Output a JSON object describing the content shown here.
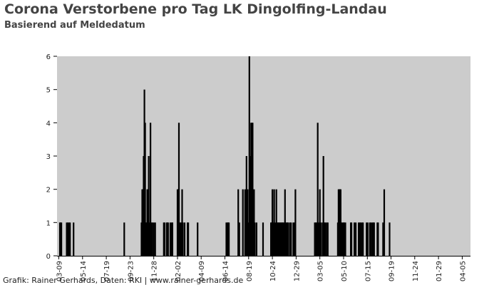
{
  "title": "Corona Verstorbene pro Tag LK Dingolfing-Landau",
  "subtitle": "Basierend auf Meldedatum",
  "credit": "Grafik: Rainer Gerhards, Daten: RKI | www.rainer-gerhards.de",
  "colors": {
    "plot_bg": "#cccccc",
    "bar": "#000000",
    "text": "#444444"
  },
  "chart_data": {
    "type": "bar",
    "title": "Corona Verstorbene pro Tag LK Dingolfing-Landau",
    "subtitle": "Basierend auf Meldedatum",
    "xlabel": "",
    "ylabel": "",
    "ylim": [
      0,
      6
    ],
    "y_ticks": [
      0,
      1,
      2,
      3,
      4,
      5,
      6
    ],
    "x_tick_labels": [
      "03-09",
      "05-14",
      "07-19",
      "09-23",
      "11-28",
      "02-02",
      "04-09",
      "06-14",
      "08-19",
      "10-24",
      "12-29",
      "03-05",
      "05-10",
      "07-15",
      "09-19",
      "11-24",
      "01-29",
      "04-05"
    ],
    "x_tick_days": [
      0,
      66,
      132,
      198,
      264,
      330,
      396,
      462,
      528,
      594,
      660,
      726,
      792,
      858,
      924,
      990,
      1056,
      1122
    ],
    "x_range_days": [
      -5,
      1145
    ],
    "grid": false,
    "legend": "none",
    "bars": [
      {
        "day": 3,
        "value": 1
      },
      {
        "day": 5,
        "value": 1
      },
      {
        "day": 7,
        "value": 1
      },
      {
        "day": 22,
        "value": 1
      },
      {
        "day": 25,
        "value": 1
      },
      {
        "day": 28,
        "value": 1
      },
      {
        "day": 31,
        "value": 1
      },
      {
        "day": 41,
        "value": 1
      },
      {
        "day": 182,
        "value": 1
      },
      {
        "day": 230,
        "value": 1
      },
      {
        "day": 232,
        "value": 2
      },
      {
        "day": 234,
        "value": 2
      },
      {
        "day": 236,
        "value": 3
      },
      {
        "day": 238,
        "value": 5
      },
      {
        "day": 240,
        "value": 4
      },
      {
        "day": 242,
        "value": 1
      },
      {
        "day": 244,
        "value": 1
      },
      {
        "day": 246,
        "value": 2
      },
      {
        "day": 248,
        "value": 2
      },
      {
        "day": 250,
        "value": 3
      },
      {
        "day": 252,
        "value": 1
      },
      {
        "day": 255,
        "value": 4
      },
      {
        "day": 258,
        "value": 1
      },
      {
        "day": 260,
        "value": 1
      },
      {
        "day": 264,
        "value": 1
      },
      {
        "day": 268,
        "value": 1
      },
      {
        "day": 292,
        "value": 1
      },
      {
        "day": 294,
        "value": 1
      },
      {
        "day": 300,
        "value": 1
      },
      {
        "day": 302,
        "value": 1
      },
      {
        "day": 304,
        "value": 1
      },
      {
        "day": 310,
        "value": 1
      },
      {
        "day": 314,
        "value": 1
      },
      {
        "day": 316,
        "value": 1
      },
      {
        "day": 330,
        "value": 2
      },
      {
        "day": 332,
        "value": 2
      },
      {
        "day": 334,
        "value": 4
      },
      {
        "day": 337,
        "value": 1
      },
      {
        "day": 339,
        "value": 1
      },
      {
        "day": 343,
        "value": 2
      },
      {
        "day": 345,
        "value": 1
      },
      {
        "day": 350,
        "value": 1
      },
      {
        "day": 358,
        "value": 1
      },
      {
        "day": 360,
        "value": 1
      },
      {
        "day": 386,
        "value": 1
      },
      {
        "day": 466,
        "value": 1
      },
      {
        "day": 469,
        "value": 1
      },
      {
        "day": 471,
        "value": 1
      },
      {
        "day": 473,
        "value": 1
      },
      {
        "day": 499,
        "value": 2
      },
      {
        "day": 502,
        "value": 1
      },
      {
        "day": 512,
        "value": 2
      },
      {
        "day": 518,
        "value": 2
      },
      {
        "day": 522,
        "value": 3
      },
      {
        "day": 525,
        "value": 2
      },
      {
        "day": 528,
        "value": 1
      },
      {
        "day": 530,
        "value": 6
      },
      {
        "day": 533,
        "value": 3
      },
      {
        "day": 535,
        "value": 4
      },
      {
        "day": 537,
        "value": 4
      },
      {
        "day": 539,
        "value": 4
      },
      {
        "day": 541,
        "value": 1
      },
      {
        "day": 543,
        "value": 2
      },
      {
        "day": 545,
        "value": 1
      },
      {
        "day": 550,
        "value": 1
      },
      {
        "day": 568,
        "value": 1
      },
      {
        "day": 590,
        "value": 1
      },
      {
        "day": 592,
        "value": 1
      },
      {
        "day": 594,
        "value": 2
      },
      {
        "day": 596,
        "value": 1
      },
      {
        "day": 599,
        "value": 2
      },
      {
        "day": 602,
        "value": 1
      },
      {
        "day": 605,
        "value": 2
      },
      {
        "day": 608,
        "value": 1
      },
      {
        "day": 610,
        "value": 1
      },
      {
        "day": 612,
        "value": 1
      },
      {
        "day": 615,
        "value": 1
      },
      {
        "day": 617,
        "value": 1
      },
      {
        "day": 620,
        "value": 1
      },
      {
        "day": 622,
        "value": 1
      },
      {
        "day": 624,
        "value": 1
      },
      {
        "day": 627,
        "value": 1
      },
      {
        "day": 629,
        "value": 2
      },
      {
        "day": 631,
        "value": 1
      },
      {
        "day": 634,
        "value": 1
      },
      {
        "day": 636,
        "value": 1
      },
      {
        "day": 638,
        "value": 1
      },
      {
        "day": 643,
        "value": 1
      },
      {
        "day": 646,
        "value": 1
      },
      {
        "day": 652,
        "value": 1
      },
      {
        "day": 655,
        "value": 1
      },
      {
        "day": 658,
        "value": 2
      },
      {
        "day": 712,
        "value": 1
      },
      {
        "day": 715,
        "value": 1
      },
      {
        "day": 717,
        "value": 1
      },
      {
        "day": 720,
        "value": 4
      },
      {
        "day": 723,
        "value": 1
      },
      {
        "day": 726,
        "value": 2
      },
      {
        "day": 729,
        "value": 1
      },
      {
        "day": 734,
        "value": 1
      },
      {
        "day": 736,
        "value": 3
      },
      {
        "day": 739,
        "value": 1
      },
      {
        "day": 741,
        "value": 1
      },
      {
        "day": 745,
        "value": 1
      },
      {
        "day": 748,
        "value": 1
      },
      {
        "day": 776,
        "value": 1
      },
      {
        "day": 778,
        "value": 2
      },
      {
        "day": 780,
        "value": 2
      },
      {
        "day": 782,
        "value": 2
      },
      {
        "day": 784,
        "value": 2
      },
      {
        "day": 786,
        "value": 1
      },
      {
        "day": 789,
        "value": 1
      },
      {
        "day": 792,
        "value": 1
      },
      {
        "day": 794,
        "value": 1
      },
      {
        "day": 797,
        "value": 1
      },
      {
        "day": 812,
        "value": 1
      },
      {
        "day": 814,
        "value": 1
      },
      {
        "day": 822,
        "value": 1
      },
      {
        "day": 826,
        "value": 1
      },
      {
        "day": 834,
        "value": 1
      },
      {
        "day": 837,
        "value": 1
      },
      {
        "day": 839,
        "value": 1
      },
      {
        "day": 843,
        "value": 1
      },
      {
        "day": 846,
        "value": 1
      },
      {
        "day": 856,
        "value": 1
      },
      {
        "day": 859,
        "value": 1
      },
      {
        "day": 865,
        "value": 1
      },
      {
        "day": 868,
        "value": 1
      },
      {
        "day": 872,
        "value": 1
      },
      {
        "day": 875,
        "value": 1
      },
      {
        "day": 877,
        "value": 1
      },
      {
        "day": 886,
        "value": 1
      },
      {
        "day": 888,
        "value": 1
      },
      {
        "day": 902,
        "value": 1
      },
      {
        "day": 905,
        "value": 2
      },
      {
        "day": 920,
        "value": 1
      }
    ]
  }
}
